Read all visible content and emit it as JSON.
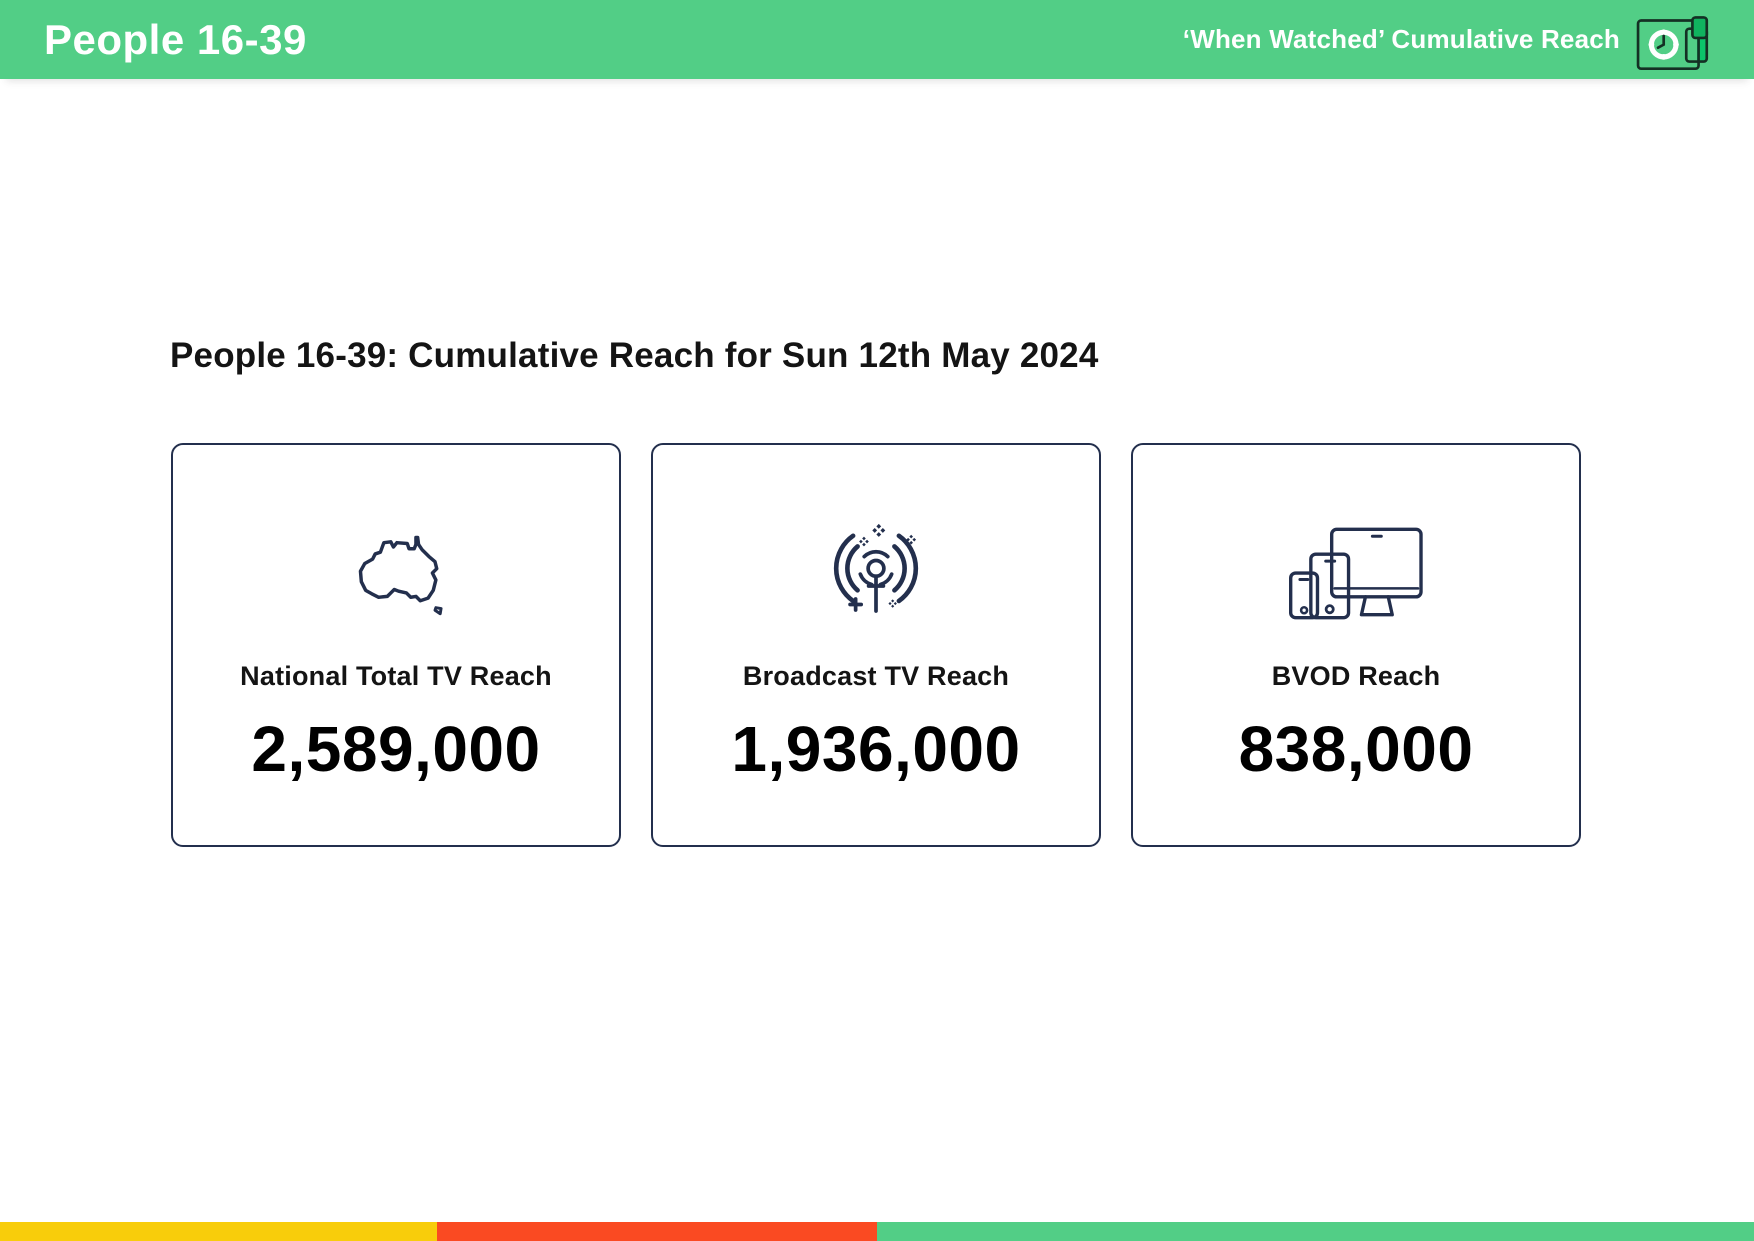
{
  "header": {
    "title": "People 16-39",
    "subtitle": "‘When Watched’ Cumulative Reach",
    "logo_icon": "clock-schedule-logo-icon"
  },
  "main": {
    "heading": "People 16-39: Cumulative Reach for Sun 12th May 2024"
  },
  "cards": [
    {
      "icon": "australia-map-icon",
      "label": "National Total TV Reach",
      "value": "2,589,000"
    },
    {
      "icon": "broadcast-antenna-icon",
      "label": "Broadcast TV Reach",
      "value": "1,936,000"
    },
    {
      "icon": "devices-icon",
      "label": "BVOD Reach",
      "value": "838,000"
    }
  ],
  "colors": {
    "header_green": "#52CE86",
    "accent_green": "#0BC469",
    "clip_green": "#10B35F",
    "icon_navy": "#232F4D",
    "logo_outline": "#143024",
    "footer_yellow": "#F8CD0B",
    "footer_red": "#FA4A22",
    "footer_green": "#52CE86"
  },
  "footer_bar": {
    "segments": [
      {
        "name": "yellow-segment",
        "color_key": "footer_yellow",
        "width_pct": 24.9
      },
      {
        "name": "red-segment",
        "color_key": "footer_red",
        "width_pct": 25.1
      },
      {
        "name": "green-segment",
        "color_key": "footer_green",
        "width_pct": 50.0
      }
    ]
  }
}
